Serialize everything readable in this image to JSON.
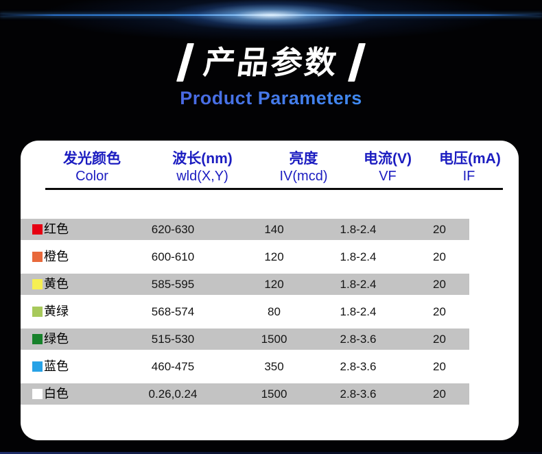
{
  "title": {
    "decor_left": "/",
    "text": "产品参数",
    "decor_right": "/",
    "subtitle": "Product Parameters"
  },
  "colors": {
    "header_text": "#1b1cc0",
    "row_band": "#c3c3c3",
    "subtitle_gradient_start": "#5348d4",
    "subtitle_gradient_end": "#45a0f5",
    "flare_blue": "#3f97e8"
  },
  "table": {
    "columns": [
      {
        "cn": "发光颜色",
        "en": "Color"
      },
      {
        "cn": "波长(nm)",
        "en": "wld(X,Y)"
      },
      {
        "cn": "亮度",
        "en": "IV(mcd)"
      },
      {
        "cn": "电流(V)",
        "en": "VF"
      },
      {
        "cn": "电压(mA)",
        "en": "IF"
      }
    ],
    "rows": [
      {
        "label": "红色",
        "swatch": "#e60012",
        "wavelength": "620-630",
        "brightness": "140",
        "current": "1.8-2.4",
        "voltage": "20"
      },
      {
        "label": "橙色",
        "swatch": "#e8693c",
        "wavelength": "600-610",
        "brightness": "120",
        "current": "1.8-2.4",
        "voltage": "20"
      },
      {
        "label": "黄色",
        "swatch": "#f6ef53",
        "wavelength": "585-595",
        "brightness": "120",
        "current": "1.8-2.4",
        "voltage": "20"
      },
      {
        "label": "黄绿",
        "swatch": "#a7c95b",
        "wavelength": "568-574",
        "brightness": "80",
        "current": "1.8-2.4",
        "voltage": "20"
      },
      {
        "label": "绿色",
        "swatch": "#17812b",
        "wavelength": "515-530",
        "brightness": "1500",
        "current": "2.8-3.6",
        "voltage": "20"
      },
      {
        "label": "蓝色",
        "swatch": "#27a2e6",
        "wavelength": "460-475",
        "brightness": "350",
        "current": "2.8-3.6",
        "voltage": "20"
      },
      {
        "label": "白色",
        "swatch": "#ffffff",
        "wavelength": "0.26,0.24",
        "brightness": "1500",
        "current": "2.8-3.6",
        "voltage": "20"
      }
    ]
  }
}
